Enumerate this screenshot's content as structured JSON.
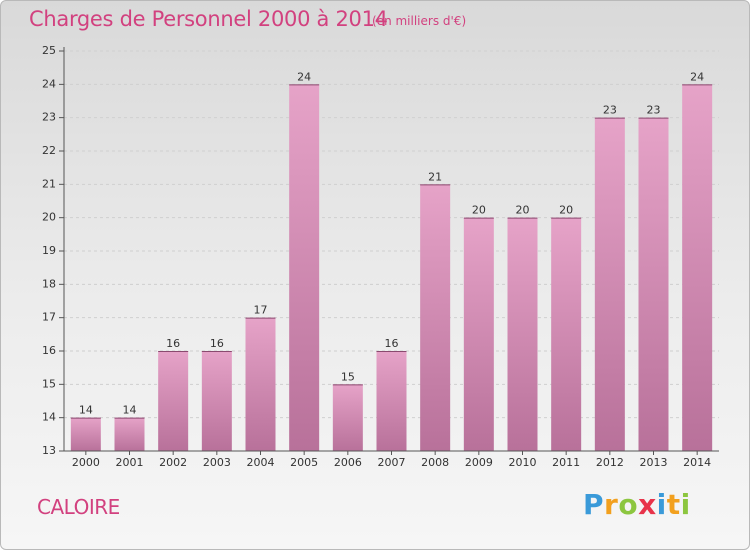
{
  "header": {
    "title": "Charges de Personnel 2000 à 2014",
    "subtitle": "(en milliers d'€)"
  },
  "footer": {
    "commune": "CALOIRE",
    "logo_text": "Proxiti",
    "logo_letters": [
      {
        "ch": "P",
        "color": "#3a9ad9"
      },
      {
        "ch": "r",
        "color": "#f2a01e"
      },
      {
        "ch": "o",
        "color": "#8cc63f"
      },
      {
        "ch": "x",
        "color": "#e8334a"
      },
      {
        "ch": "i",
        "color": "#3a9ad9"
      },
      {
        "ch": "t",
        "color": "#f2a01e"
      },
      {
        "ch": "i",
        "color": "#8cc63f"
      }
    ]
  },
  "chart_data": {
    "type": "bar",
    "categories": [
      "2000",
      "2001",
      "2002",
      "2003",
      "2004",
      "2005",
      "2006",
      "2007",
      "2008",
      "2009",
      "2010",
      "2011",
      "2012",
      "2013",
      "2014"
    ],
    "values": [
      14,
      14,
      16,
      16,
      17,
      24,
      15,
      16,
      21,
      20,
      20,
      20,
      23,
      23,
      24
    ],
    "ylim": [
      13,
      25
    ],
    "yticks": [
      13,
      14,
      15,
      16,
      17,
      18,
      19,
      20,
      21,
      22,
      23,
      24,
      25
    ],
    "grid": true,
    "bar_color_top": "#e6a3c8",
    "bar_color_bottom": "#b8719a"
  }
}
